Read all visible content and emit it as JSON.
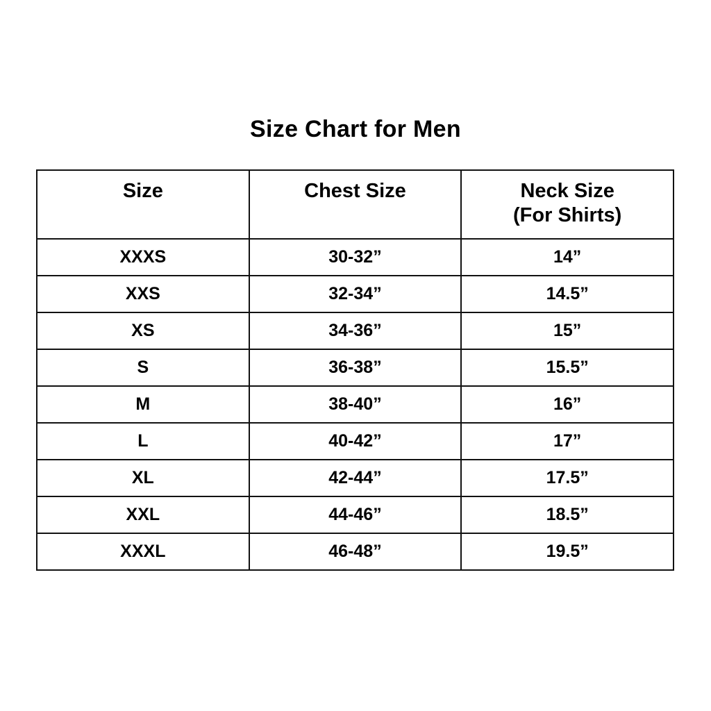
{
  "page": {
    "background_color": "#ffffff",
    "text_color": "#000000",
    "border_color": "#111111"
  },
  "chart_data": {
    "type": "table",
    "title": "Size Chart for Men",
    "columns": [
      "Size",
      "Chest Size",
      "Neck Size (For Shirts)"
    ],
    "header": {
      "col1": "Size",
      "col2": "Chest Size",
      "col3_line1": "Neck Size",
      "col3_line2": "(For Shirts)"
    },
    "rows": [
      [
        "XXXS",
        "30-32”",
        "14”"
      ],
      [
        "XXS",
        "32-34”",
        "14.5”"
      ],
      [
        "XS",
        "34-36”",
        "15”"
      ],
      [
        "S",
        "36-38”",
        "15.5”"
      ],
      [
        "M",
        "38-40”",
        "16”"
      ],
      [
        "L",
        "40-42”",
        "17”"
      ],
      [
        "XL",
        "42-44”",
        "17.5”"
      ],
      [
        "XXL",
        "44-46”",
        "18.5”"
      ],
      [
        "XXXL",
        "46-48”",
        "19.5”"
      ]
    ],
    "layout": {
      "columns_equal_width": true,
      "all_text_bold": true,
      "all_text_centered": true
    }
  }
}
